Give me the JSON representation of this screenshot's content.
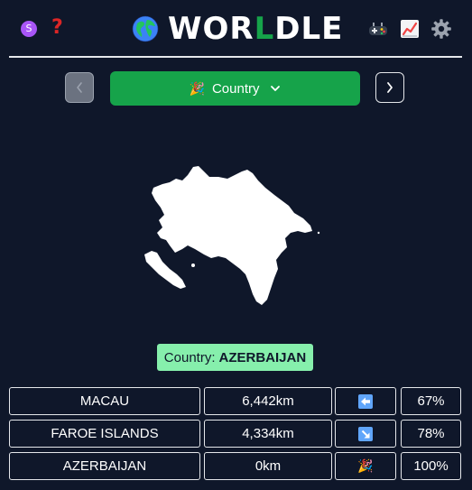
{
  "header": {
    "badge_letter": "S",
    "help_glyph": "?",
    "logo_parts": [
      "WOR",
      "L",
      "DLE"
    ],
    "icons": [
      "s-badge-icon",
      "help-icon",
      "globe-icon",
      "joystick-icon",
      "stats-chart-icon",
      "gear-icon"
    ]
  },
  "nav": {
    "prev_icon": "chevron-left-icon",
    "next_icon": "chevron-right-icon",
    "mode_emoji": "🎉",
    "mode_label": "Country",
    "mode_chevron": "chevron-down-icon"
  },
  "answer": {
    "label": "Country:",
    "value": "AZERBAIJAN"
  },
  "guesses": [
    {
      "country": "MACAU",
      "distance": "6,442km",
      "direction": "arrow-left-icon",
      "proximity": "67%"
    },
    {
      "country": "FAROE ISLANDS",
      "distance": "4,334km",
      "direction": "arrow-down-right-icon",
      "proximity": "78%"
    },
    {
      "country": "AZERBAIJAN",
      "distance": "0km",
      "direction": "party-popper-icon",
      "direction_glyph": "🎉",
      "proximity": "100%"
    }
  ],
  "colors": {
    "background": "#0f172a",
    "accent_green": "#16a34a",
    "answer_green": "#86efac",
    "help_red": "#dc2626",
    "badge_purple": "#a855f7",
    "arrow_blue": "#60a5fa"
  }
}
